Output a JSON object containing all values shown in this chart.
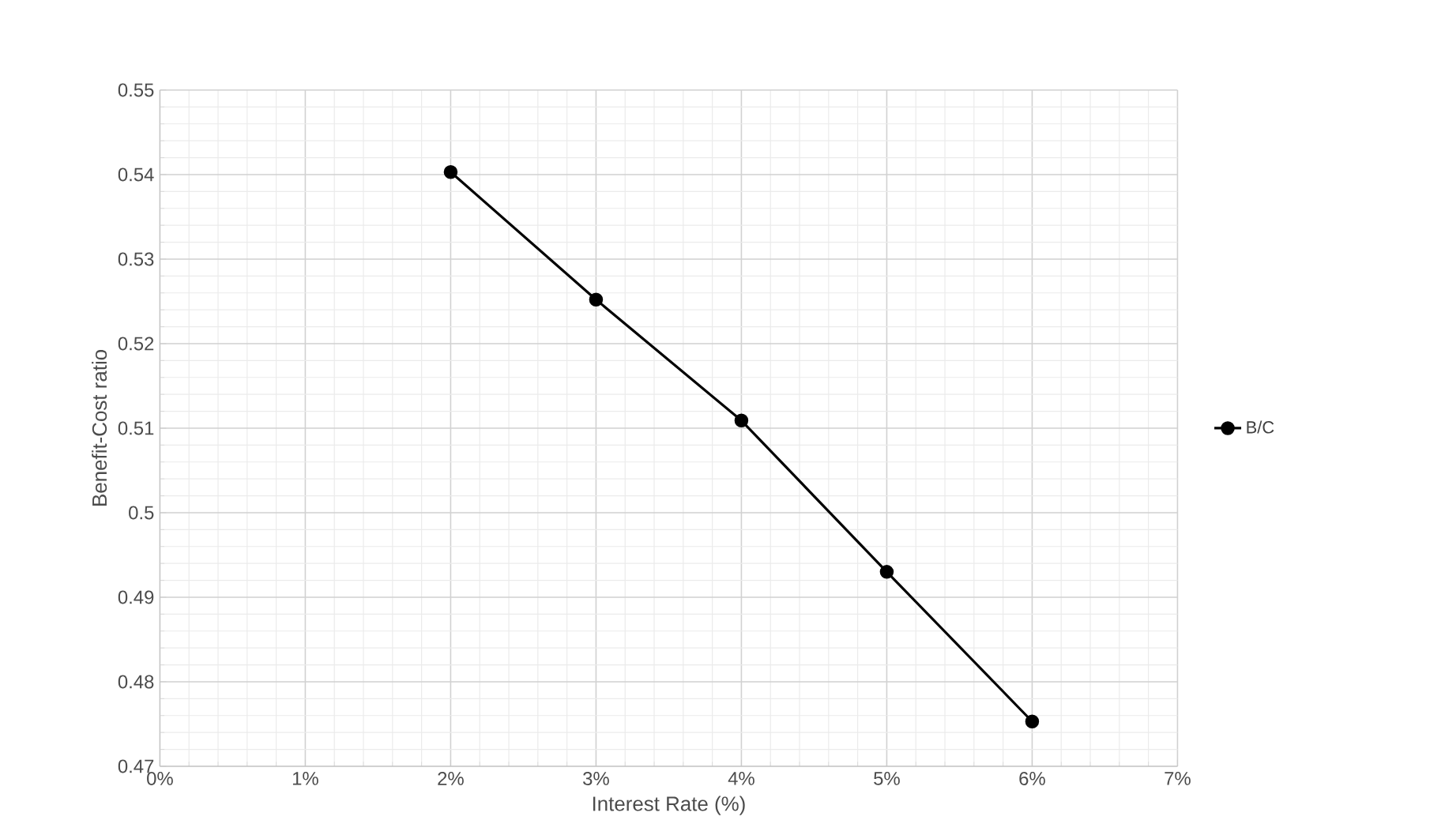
{
  "chart_data": {
    "type": "line",
    "xlabel": "Interest Rate (%)",
    "ylabel": "Benefit-Cost ratio",
    "x": [
      2,
      3,
      4,
      5,
      6
    ],
    "series": [
      {
        "name": "B/C",
        "color": "#000000",
        "values": [
          0.5403,
          0.5252,
          0.5109,
          0.493,
          0.4753
        ]
      }
    ],
    "xlim": [
      0,
      7
    ],
    "xticks": [
      {
        "value": 0,
        "label": "0%"
      },
      {
        "value": 1,
        "label": "1%"
      },
      {
        "value": 2,
        "label": "2%"
      },
      {
        "value": 3,
        "label": "3%"
      },
      {
        "value": 4,
        "label": "4%"
      },
      {
        "value": 5,
        "label": "5%"
      },
      {
        "value": 6,
        "label": "6%"
      },
      {
        "value": 7,
        "label": "7%"
      }
    ],
    "ylim": [
      0.47,
      0.55
    ],
    "yticks": [
      0.47,
      0.48,
      0.49,
      0.5,
      0.51,
      0.52,
      0.53,
      0.54,
      0.55
    ],
    "grid": true,
    "legend": "right",
    "marker": "circle",
    "line_style": "solid"
  }
}
